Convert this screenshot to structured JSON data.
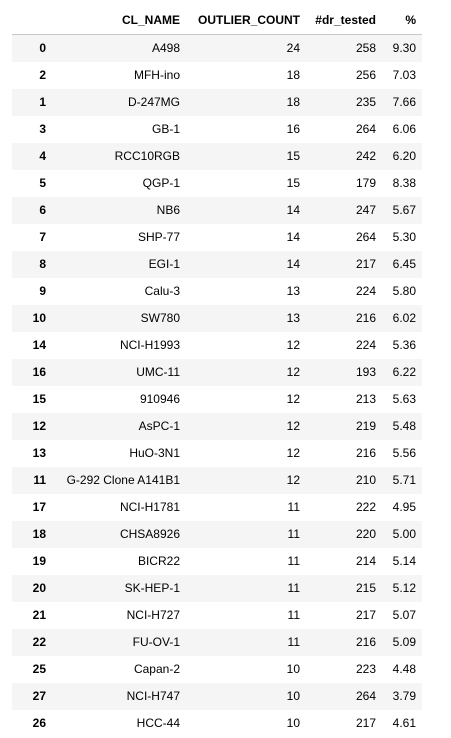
{
  "table": {
    "columns": [
      "CL_NAME",
      "OUTLIER_COUNT",
      "#dr_tested",
      "%"
    ],
    "rows": [
      {
        "idx": "0",
        "name": "A498",
        "count": "24",
        "dr": "258",
        "pct": "9.30"
      },
      {
        "idx": "2",
        "name": "MFH-ino",
        "count": "18",
        "dr": "256",
        "pct": "7.03"
      },
      {
        "idx": "1",
        "name": "D-247MG",
        "count": "18",
        "dr": "235",
        "pct": "7.66"
      },
      {
        "idx": "3",
        "name": "GB-1",
        "count": "16",
        "dr": "264",
        "pct": "6.06"
      },
      {
        "idx": "4",
        "name": "RCC10RGB",
        "count": "15",
        "dr": "242",
        "pct": "6.20"
      },
      {
        "idx": "5",
        "name": "QGP-1",
        "count": "15",
        "dr": "179",
        "pct": "8.38"
      },
      {
        "idx": "6",
        "name": "NB6",
        "count": "14",
        "dr": "247",
        "pct": "5.67"
      },
      {
        "idx": "7",
        "name": "SHP-77",
        "count": "14",
        "dr": "264",
        "pct": "5.30"
      },
      {
        "idx": "8",
        "name": "EGI-1",
        "count": "14",
        "dr": "217",
        "pct": "6.45"
      },
      {
        "idx": "9",
        "name": "Calu-3",
        "count": "13",
        "dr": "224",
        "pct": "5.80"
      },
      {
        "idx": "10",
        "name": "SW780",
        "count": "13",
        "dr": "216",
        "pct": "6.02"
      },
      {
        "idx": "14",
        "name": "NCI-H1993",
        "count": "12",
        "dr": "224",
        "pct": "5.36"
      },
      {
        "idx": "16",
        "name": "UMC-11",
        "count": "12",
        "dr": "193",
        "pct": "6.22"
      },
      {
        "idx": "15",
        "name": "910946",
        "count": "12",
        "dr": "213",
        "pct": "5.63"
      },
      {
        "idx": "12",
        "name": "AsPC-1",
        "count": "12",
        "dr": "219",
        "pct": "5.48"
      },
      {
        "idx": "13",
        "name": "HuO-3N1",
        "count": "12",
        "dr": "216",
        "pct": "5.56"
      },
      {
        "idx": "11",
        "name": "G-292 Clone A141B1",
        "count": "12",
        "dr": "210",
        "pct": "5.71"
      },
      {
        "idx": "17",
        "name": "NCI-H1781",
        "count": "11",
        "dr": "222",
        "pct": "4.95"
      },
      {
        "idx": "18",
        "name": "CHSA8926",
        "count": "11",
        "dr": "220",
        "pct": "5.00"
      },
      {
        "idx": "19",
        "name": "BICR22",
        "count": "11",
        "dr": "214",
        "pct": "5.14"
      },
      {
        "idx": "20",
        "name": "SK-HEP-1",
        "count": "11",
        "dr": "215",
        "pct": "5.12"
      },
      {
        "idx": "21",
        "name": "NCI-H727",
        "count": "11",
        "dr": "217",
        "pct": "5.07"
      },
      {
        "idx": "22",
        "name": "FU-OV-1",
        "count": "11",
        "dr": "216",
        "pct": "5.09"
      },
      {
        "idx": "25",
        "name": "Capan-2",
        "count": "10",
        "dr": "223",
        "pct": "4.48"
      },
      {
        "idx": "27",
        "name": "NCI-H747",
        "count": "10",
        "dr": "264",
        "pct": "3.79"
      },
      {
        "idx": "26",
        "name": "HCC-44",
        "count": "10",
        "dr": "217",
        "pct": "4.61"
      }
    ]
  }
}
